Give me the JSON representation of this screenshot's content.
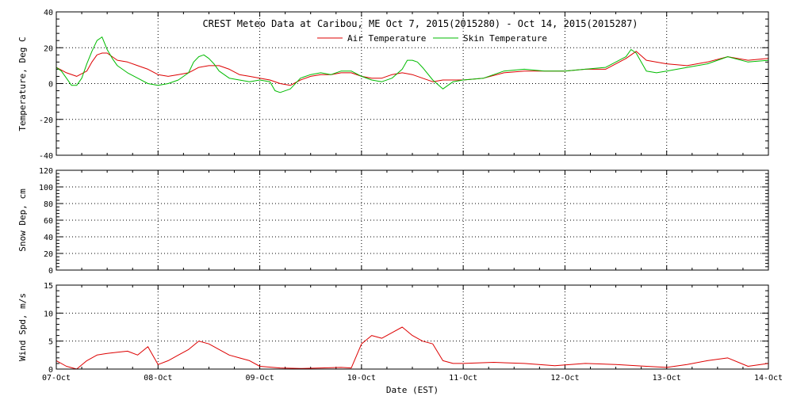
{
  "colors": {
    "air": "#dd0000",
    "skin": "#00bb00",
    "wind": "#dd0000",
    "axis": "#000000",
    "grid": "#000000"
  },
  "chart_data": [
    {
      "type": "line",
      "title": "CREST Meteo Data at Caribou, ME   Oct  7, 2015(2015280) - Oct 14, 2015(2015287)",
      "ylabel": "Temperature, Deg C",
      "xlim": [
        0,
        7
      ],
      "ylim": [
        -40,
        40
      ],
      "yticks": [
        "-40",
        "-20",
        "0",
        "20",
        "40"
      ],
      "grid": true,
      "legend": "top-center",
      "series": [
        {
          "name": "Air Temperature",
          "color": "#dd0000",
          "x": [
            0.0,
            0.1,
            0.2,
            0.3,
            0.35,
            0.4,
            0.45,
            0.5,
            0.55,
            0.6,
            0.7,
            0.8,
            0.9,
            1.0,
            1.1,
            1.2,
            1.3,
            1.4,
            1.5,
            1.6,
            1.7,
            1.8,
            1.9,
            2.0,
            2.1,
            2.2,
            2.3,
            2.4,
            2.5,
            2.6,
            2.7,
            2.8,
            2.9,
            3.0,
            3.1,
            3.2,
            3.3,
            3.4,
            3.5,
            3.6,
            3.7,
            3.8,
            3.9,
            4.0,
            4.2,
            4.4,
            4.6,
            4.8,
            5.0,
            5.2,
            5.4,
            5.6,
            5.7,
            5.8,
            6.0,
            6.2,
            6.4,
            6.6,
            6.8,
            7.0
          ],
          "y": [
            9,
            6,
            4,
            7,
            12,
            16,
            17,
            17,
            15,
            13,
            12,
            10,
            8,
            5,
            4,
            5,
            6,
            9,
            10,
            10,
            8,
            5,
            4,
            3,
            2,
            0,
            -1,
            2,
            4,
            5,
            5,
            6,
            6,
            4,
            3,
            3,
            5,
            6,
            5,
            3,
            1,
            2,
            2,
            2,
            3,
            6,
            7,
            7,
            7,
            8,
            8,
            14,
            18,
            13,
            11,
            10,
            12,
            15,
            13,
            14
          ]
        },
        {
          "name": "Skin Temperature",
          "color": "#00bb00",
          "x": [
            0.0,
            0.05,
            0.1,
            0.15,
            0.2,
            0.25,
            0.3,
            0.35,
            0.4,
            0.45,
            0.5,
            0.55,
            0.6,
            0.7,
            0.8,
            0.9,
            1.0,
            1.1,
            1.2,
            1.3,
            1.35,
            1.4,
            1.45,
            1.5,
            1.55,
            1.6,
            1.7,
            1.8,
            1.9,
            2.0,
            2.1,
            2.15,
            2.2,
            2.3,
            2.4,
            2.5,
            2.6,
            2.7,
            2.8,
            2.9,
            3.0,
            3.1,
            3.2,
            3.3,
            3.4,
            3.45,
            3.5,
            3.55,
            3.6,
            3.7,
            3.8,
            3.9,
            4.0,
            4.2,
            4.4,
            4.6,
            4.8,
            5.0,
            5.2,
            5.4,
            5.6,
            5.65,
            5.7,
            5.8,
            5.9,
            6.0,
            6.2,
            6.4,
            6.6,
            6.8,
            7.0
          ],
          "y": [
            9,
            7,
            3,
            -1,
            -1,
            3,
            11,
            18,
            24,
            26,
            19,
            14,
            10,
            6,
            3,
            0,
            -1,
            0,
            2,
            6,
            12,
            15,
            16,
            14,
            11,
            7,
            3,
            2,
            1,
            2,
            1,
            -4,
            -5,
            -3,
            3,
            5,
            6,
            5,
            7,
            7,
            4,
            2,
            1,
            3,
            8,
            13,
            13,
            12,
            9,
            2,
            -3,
            1,
            2,
            3,
            7,
            8,
            7,
            7,
            8,
            9,
            15,
            19,
            17,
            7,
            6,
            7,
            9,
            11,
            15,
            12,
            13
          ]
        }
      ]
    },
    {
      "type": "line",
      "ylabel": "Snow Dep, cm",
      "xlim": [
        0,
        7
      ],
      "ylim": [
        0,
        120
      ],
      "yticks": [
        "0",
        "20",
        "40",
        "60",
        "80",
        "100",
        "120"
      ],
      "grid": true,
      "series": []
    },
    {
      "type": "line",
      "ylabel": "Wind Spd, m/s",
      "xlabel": "Date (EST)",
      "xlim": [
        0,
        7
      ],
      "ylim": [
        0,
        15
      ],
      "yticks": [
        "0",
        "5",
        "10",
        "15"
      ],
      "xticks": [
        "07-Oct",
        "08-Oct",
        "09-Oct",
        "10-Oct",
        "11-Oct",
        "12-Oct",
        "13-Oct",
        "14-Oct"
      ],
      "grid": true,
      "series": [
        {
          "name": "",
          "color": "#dd0000",
          "x": [
            0.0,
            0.1,
            0.2,
            0.3,
            0.4,
            0.5,
            0.6,
            0.7,
            0.8,
            0.9,
            1.0,
            1.1,
            1.2,
            1.3,
            1.4,
            1.5,
            1.6,
            1.7,
            1.8,
            1.9,
            2.0,
            2.2,
            2.4,
            2.6,
            2.8,
            2.9,
            3.0,
            3.1,
            3.2,
            3.3,
            3.4,
            3.5,
            3.6,
            3.7,
            3.8,
            3.9,
            4.0,
            4.3,
            4.6,
            4.9,
            5.2,
            5.5,
            5.8,
            6.0,
            6.2,
            6.4,
            6.6,
            6.8,
            7.0
          ],
          "y": [
            1.5,
            0.5,
            0,
            1.5,
            2.5,
            2.8,
            3.0,
            3.2,
            2.5,
            4.0,
            0.8,
            1.5,
            2.5,
            3.5,
            5.0,
            4.5,
            3.5,
            2.5,
            2.0,
            1.5,
            0.5,
            0.2,
            0.1,
            0.2,
            0.3,
            0.2,
            4.5,
            6.0,
            5.5,
            6.5,
            7.5,
            6.0,
            5.0,
            4.5,
            1.5,
            1.0,
            1.0,
            1.2,
            1.0,
            0.6,
            1.0,
            0.8,
            0.5,
            0.3,
            0.8,
            1.5,
            2.0,
            0.5,
            1.0
          ]
        }
      ]
    }
  ]
}
